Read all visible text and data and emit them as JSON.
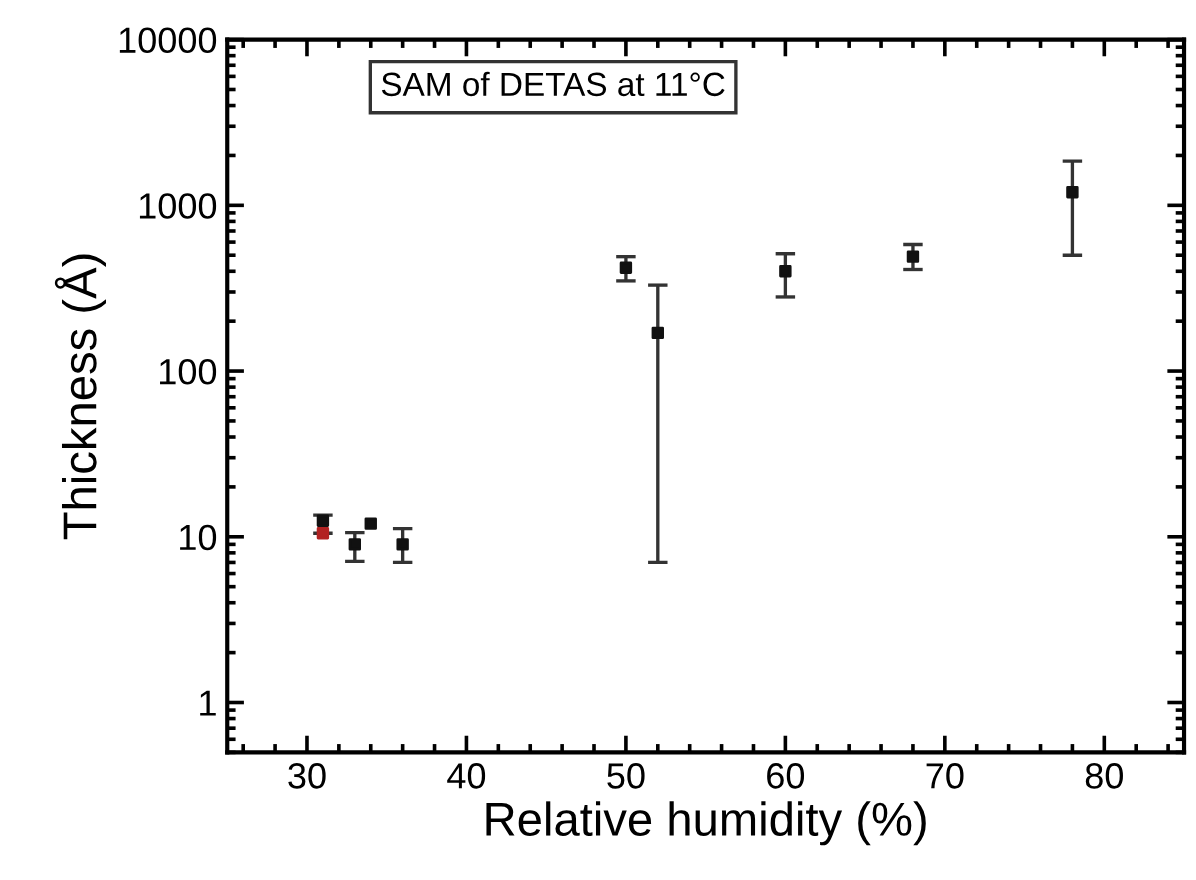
{
  "chart_data": {
    "type": "scatter",
    "xlabel": "Relative humidity (%)",
    "ylabel": "Thickness (Å)",
    "annotations": [
      "SAM of DETAS at 11°C"
    ],
    "log": "y",
    "xlim": [
      25,
      85
    ],
    "xticks": [
      30,
      40,
      50,
      60,
      70,
      80
    ],
    "ylim": [
      0.5,
      10000
    ],
    "yticks": [
      1,
      10,
      100,
      1000,
      10000
    ],
    "grid": false,
    "legend": false,
    "marker": "square",
    "series": [
      {
        "color": "#111111",
        "x": [
          31,
          33,
          34,
          36,
          50,
          52,
          60,
          68,
          78
        ],
        "values": [
          12.5,
          9,
          12,
          9,
          420,
          170,
          400,
          490,
          1200
        ],
        "errors": [
          [
            10.5,
            13.5
          ],
          [
            7.1,
            10.6
          ],
          null,
          [
            7,
            11.2
          ],
          [
            350,
            490
          ],
          [
            7,
            330
          ],
          [
            280,
            510
          ],
          [
            410,
            580
          ],
          [
            500,
            1850
          ]
        ]
      },
      {
        "color": "#b22222",
        "x": [
          31
        ],
        "values": [
          10.5
        ],
        "errors": [
          null
        ]
      }
    ]
  }
}
